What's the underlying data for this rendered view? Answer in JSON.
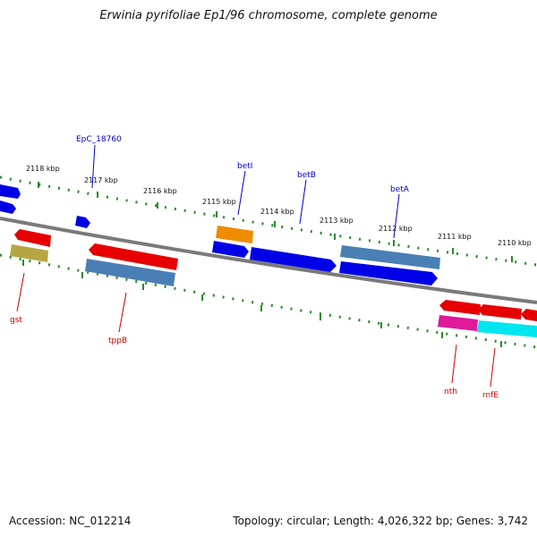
{
  "title": "Erwinia pyrifoliae Ep1/96 chromosome, complete genome",
  "accession_text": "Accession: NC_012214",
  "topology_text": "Topology: circular; Length: 4,026,322 bp; Genes: 3,742",
  "ruler_labels": [
    "2118 kbp",
    "2117 kbp",
    "2116 kbp",
    "2115 kbp",
    "2114 kbp",
    "2113 kbp",
    "2112 kbp",
    "2111 kbp",
    "2110 kbp"
  ],
  "gene_labels_top": [
    "EpC_18760",
    "betI",
    "betB",
    "betA"
  ],
  "gene_labels_bottom": [
    "gst",
    "tppB",
    "nth",
    "rnfE"
  ],
  "colors": {
    "backbone": "#7a7a7a",
    "tick": "#2a8a2a",
    "gene_red": "#e60000",
    "gene_blue": "#0000e6",
    "gene_steel": "#4a7fb5",
    "gene_orange": "#f08c00",
    "gene_khaki": "#b5a642",
    "gene_magenta": "#e0189a",
    "gene_cyan": "#00e5ee",
    "label_top": "#0000cc",
    "label_bottom": "#cc0000"
  }
}
